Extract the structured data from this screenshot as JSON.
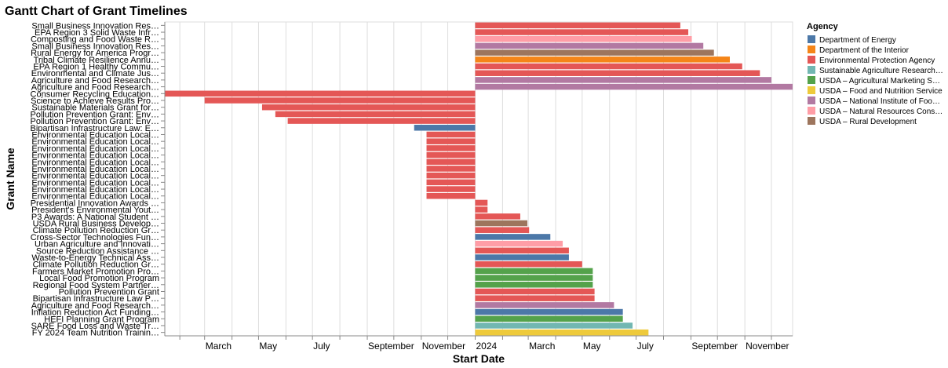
{
  "chart_data": {
    "type": "gantt",
    "title": "Gantt Chart of Grant Timelines",
    "xlabel": "Start Date",
    "ylabel": "Grant Name",
    "x_domain": [
      "2023-01-15",
      "2024-12-25"
    ],
    "x_ticks": [
      "March",
      "May",
      "July",
      "September",
      "November",
      "2024",
      "March",
      "May",
      "July",
      "September",
      "November"
    ],
    "grid": true,
    "legend": {
      "title": "Agency",
      "placement": "top-right",
      "entries": [
        {
          "name": "Department of Energy",
          "color": "#4c78a8"
        },
        {
          "name": "Department of the Interior",
          "color": "#f58518"
        },
        {
          "name": "Environmental Protection Agency",
          "color": "#e45756"
        },
        {
          "name": "Sustainable Agriculture Research…",
          "color": "#72b7b2"
        },
        {
          "name": "USDA – Agricultural Marketing S…",
          "color": "#54a24b"
        },
        {
          "name": "USDA – Food and Nutrition Service",
          "color": "#eeca3b"
        },
        {
          "name": "USDA – National Institute of Foo…",
          "color": "#b279a2"
        },
        {
          "name": "USDA – Natural Resources Cons…",
          "color": "#ff9da6"
        },
        {
          "name": "USDA – Rural Development",
          "color": "#9d755d"
        }
      ]
    },
    "rows": [
      {
        "name": "Small Business Innovation Res…",
        "start": "2024-01-01",
        "end": "2024-08-20",
        "agency": 2
      },
      {
        "name": "EPA Region 3 Solid Waste Infr…",
        "start": "2024-01-01",
        "end": "2024-08-29",
        "agency": 2
      },
      {
        "name": "Composting and Food Waste R…",
        "start": "2024-01-01",
        "end": "2024-09-02",
        "agency": 7
      },
      {
        "name": "Small Business Innovation Res…",
        "start": "2024-01-01",
        "end": "2024-09-15",
        "agency": 6
      },
      {
        "name": "Rural Energy for America Progr…",
        "start": "2024-01-01",
        "end": "2024-09-27",
        "agency": 8
      },
      {
        "name": "Tribal Climate Resilience Annu…",
        "start": "2024-01-01",
        "end": "2024-10-15",
        "agency": 1
      },
      {
        "name": "EPA Region 1 Healthy Commu…",
        "start": "2024-01-01",
        "end": "2024-10-29",
        "agency": 2
      },
      {
        "name": "Environmental and Climate Jus…",
        "start": "2024-01-01",
        "end": "2024-11-18",
        "agency": 2
      },
      {
        "name": "Agriculture and Food Research…",
        "start": "2024-01-01",
        "end": "2024-12-01",
        "agency": 6
      },
      {
        "name": "Agriculture and Food Research…",
        "start": "2024-01-01",
        "end": "2024-12-25",
        "agency": 6
      },
      {
        "name": "Consumer Recycling Education…",
        "start": "2023-01-15",
        "end": "2024-01-01",
        "agency": 2
      },
      {
        "name": "Science to Achieve Results Pro…",
        "start": "2023-03-01",
        "end": "2024-01-01",
        "agency": 2
      },
      {
        "name": "Sustainable Materials Grant for…",
        "start": "2023-05-05",
        "end": "2024-01-01",
        "agency": 2
      },
      {
        "name": "Pollution Prevention Grant: Env…",
        "start": "2023-05-20",
        "end": "2024-01-01",
        "agency": 2
      },
      {
        "name": "Pollution Prevention Grant: Env…",
        "start": "2023-06-03",
        "end": "2024-01-01",
        "agency": 2
      },
      {
        "name": "Bipartisan Infrastructure Law: E…",
        "start": "2023-10-24",
        "end": "2024-01-01",
        "agency": 0
      },
      {
        "name": "Environmental Education Local…",
        "start": "2023-11-07",
        "end": "2024-01-01",
        "agency": 2
      },
      {
        "name": "Environmental Education Local…",
        "start": "2023-11-07",
        "end": "2024-01-01",
        "agency": 2
      },
      {
        "name": "Environmental Education Local…",
        "start": "2023-11-07",
        "end": "2024-01-01",
        "agency": 2
      },
      {
        "name": "Environmental Education Local…",
        "start": "2023-11-07",
        "end": "2024-01-01",
        "agency": 2
      },
      {
        "name": "Environmental Education Local…",
        "start": "2023-11-07",
        "end": "2024-01-01",
        "agency": 2
      },
      {
        "name": "Environmental Education Local…",
        "start": "2023-11-07",
        "end": "2024-01-01",
        "agency": 2
      },
      {
        "name": "Environmental Education Local…",
        "start": "2023-11-07",
        "end": "2024-01-01",
        "agency": 2
      },
      {
        "name": "Environmental Education Local…",
        "start": "2023-11-07",
        "end": "2024-01-01",
        "agency": 2
      },
      {
        "name": "Environmental Education Local…",
        "start": "2023-11-07",
        "end": "2024-01-01",
        "agency": 2
      },
      {
        "name": "Environmental Education Local…",
        "start": "2023-11-07",
        "end": "2024-01-01",
        "agency": 2
      },
      {
        "name": "Presidential Innovation Awards …",
        "start": "2024-01-01",
        "end": "2024-01-15",
        "agency": 2
      },
      {
        "name": "President's Environmental Yout…",
        "start": "2024-01-01",
        "end": "2024-01-15",
        "agency": 2
      },
      {
        "name": "P3 Awards: A National Student …",
        "start": "2024-01-01",
        "end": "2024-02-21",
        "agency": 2
      },
      {
        "name": "USDA Rural Business Develop…",
        "start": "2024-01-01",
        "end": "2024-02-29",
        "agency": 8
      },
      {
        "name": "Climate Pollution Reduction Gr…",
        "start": "2024-01-01",
        "end": "2024-03-02",
        "agency": 2
      },
      {
        "name": "Cross-Sector Technologies Fun…",
        "start": "2024-01-01",
        "end": "2024-03-26",
        "agency": 0
      },
      {
        "name": "Urban Agriculture and Innovati…",
        "start": "2024-01-01",
        "end": "2024-04-09",
        "agency": 7
      },
      {
        "name": "Source Reduction Assistance …",
        "start": "2024-01-01",
        "end": "2024-04-16",
        "agency": 2
      },
      {
        "name": "Waste-to-Energy Technical Ass…",
        "start": "2024-01-01",
        "end": "2024-04-16",
        "agency": 0
      },
      {
        "name": "Climate Pollution Reduction Gr…",
        "start": "2024-01-01",
        "end": "2024-05-01",
        "agency": 2
      },
      {
        "name": "Farmers Market Promotion Pro…",
        "start": "2024-01-01",
        "end": "2024-05-13",
        "agency": 4
      },
      {
        "name": "Local Food Promotion Program",
        "start": "2024-01-01",
        "end": "2024-05-13",
        "agency": 4
      },
      {
        "name": "Regional Food System Partner…",
        "start": "2024-01-01",
        "end": "2024-05-13",
        "agency": 4
      },
      {
        "name": "Pollution Prevention Grant",
        "start": "2024-01-01",
        "end": "2024-05-15",
        "agency": 2
      },
      {
        "name": "Bipartisan Infrastructure Law P…",
        "start": "2024-01-01",
        "end": "2024-05-15",
        "agency": 2
      },
      {
        "name": "Agriculture and Food Research…",
        "start": "2024-01-01",
        "end": "2024-06-06",
        "agency": 6
      },
      {
        "name": "Inflation Reduction Act Funding…",
        "start": "2024-01-01",
        "end": "2024-06-16",
        "agency": 0
      },
      {
        "name": "HEFI Planning Grant Program",
        "start": "2024-01-01",
        "end": "2024-06-16",
        "agency": 4
      },
      {
        "name": "SARE Food Loss and Waste Tr…",
        "start": "2024-01-01",
        "end": "2024-06-27",
        "agency": 3
      },
      {
        "name": "FY 2024 Team Nutrition Trainin…",
        "start": "2024-01-01",
        "end": "2024-07-15",
        "agency": 5
      }
    ]
  }
}
